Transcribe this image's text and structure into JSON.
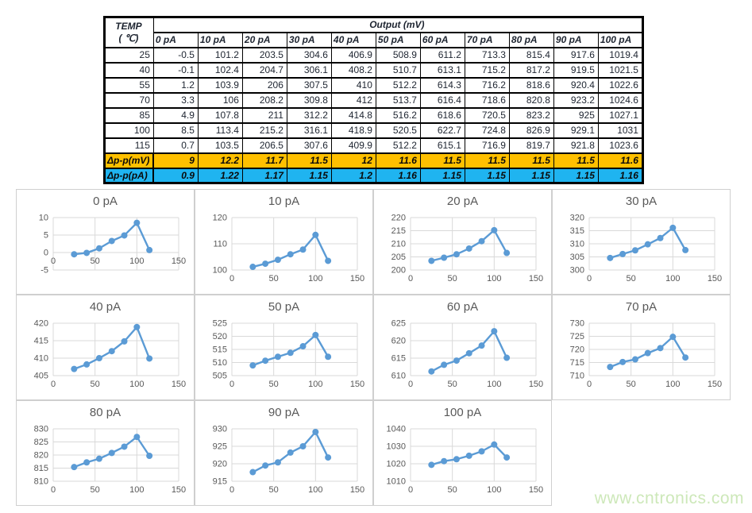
{
  "table": {
    "corner_label_line1": "TEMP",
    "corner_label_line2": "( ℃)",
    "span_header": "Output (mV)",
    "column_headers": [
      "0 pA",
      "10 pA",
      "20 pA",
      "30 pA",
      "40 pA",
      "50 pA",
      "60 pA",
      "70 pA",
      "80 pA",
      "90 pA",
      "100 pA"
    ],
    "rows": [
      {
        "temp": "25",
        "values": [
          "-0.5",
          "101.2",
          "203.5",
          "304.6",
          "406.9",
          "508.9",
          "611.2",
          "713.3",
          "815.4",
          "917.6",
          "1019.4"
        ]
      },
      {
        "temp": "40",
        "values": [
          "-0.1",
          "102.4",
          "204.7",
          "306.1",
          "408.2",
          "510.7",
          "613.1",
          "715.2",
          "817.2",
          "919.5",
          "1021.5"
        ]
      },
      {
        "temp": "55",
        "values": [
          "1.2",
          "103.9",
          "206",
          "307.5",
          "410",
          "512.2",
          "614.3",
          "716.2",
          "818.6",
          "920.4",
          "1022.6"
        ]
      },
      {
        "temp": "70",
        "values": [
          "3.3",
          "106",
          "208.2",
          "309.8",
          "412",
          "513.7",
          "616.4",
          "718.6",
          "820.8",
          "923.2",
          "1024.6"
        ]
      },
      {
        "temp": "85",
        "values": [
          "4.9",
          "107.8",
          "211",
          "312.2",
          "414.8",
          "516.2",
          "618.6",
          "720.5",
          "823.2",
          "925",
          "1027.1"
        ]
      },
      {
        "temp": "100",
        "values": [
          "8.5",
          "113.4",
          "215.2",
          "316.1",
          "418.9",
          "520.5",
          "622.7",
          "724.8",
          "826.9",
          "929.1",
          "1031"
        ]
      },
      {
        "temp": "115",
        "values": [
          "0.7",
          "103.5",
          "206.5",
          "307.6",
          "409.9",
          "512.2",
          "615.1",
          "716.9",
          "819.7",
          "921.8",
          "1023.6"
        ]
      }
    ],
    "delta_mv": {
      "label": "Δp-p(mV)",
      "values": [
        "9",
        "12.2",
        "11.7",
        "11.5",
        "12",
        "11.6",
        "11.5",
        "11.5",
        "11.5",
        "11.5",
        "11.6"
      ]
    },
    "delta_pa": {
      "label": "Δp-p(pA)",
      "values": [
        "0.9",
        "1.22",
        "1.17",
        "1.15",
        "1.2",
        "1.16",
        "1.15",
        "1.15",
        "1.15",
        "1.15",
        "1.16"
      ]
    }
  },
  "chart_data": [
    {
      "type": "line",
      "title": "0 pA",
      "xlabel": "",
      "ylabel": "",
      "x": [
        25,
        40,
        55,
        70,
        85,
        100,
        115
      ],
      "values": [
        -0.5,
        -0.1,
        1.2,
        3.3,
        4.9,
        8.5,
        0.7
      ],
      "xlim": [
        0,
        150
      ],
      "xticks": [
        0,
        50,
        100,
        150
      ],
      "ylim": [
        -5,
        10
      ],
      "yticks": [
        -5,
        0,
        5,
        10
      ]
    },
    {
      "type": "line",
      "title": "10 pA",
      "xlabel": "",
      "ylabel": "",
      "x": [
        25,
        40,
        55,
        70,
        85,
        100,
        115
      ],
      "values": [
        101.2,
        102.4,
        103.9,
        106,
        107.8,
        113.4,
        103.5
      ],
      "xlim": [
        0,
        150
      ],
      "xticks": [
        0,
        50,
        100,
        150
      ],
      "ylim": [
        100,
        120
      ],
      "yticks": [
        100,
        110,
        120
      ]
    },
    {
      "type": "line",
      "title": "20 pA",
      "xlabel": "",
      "ylabel": "",
      "x": [
        25,
        40,
        55,
        70,
        85,
        100,
        115
      ],
      "values": [
        203.5,
        204.7,
        206,
        208.2,
        211,
        215.2,
        206.5
      ],
      "xlim": [
        0,
        150
      ],
      "xticks": [
        0,
        50,
        100,
        150
      ],
      "ylim": [
        200,
        220
      ],
      "yticks": [
        200,
        205,
        210,
        215,
        220
      ]
    },
    {
      "type": "line",
      "title": "30 pA",
      "xlabel": "",
      "ylabel": "",
      "x": [
        25,
        40,
        55,
        70,
        85,
        100,
        115
      ],
      "values": [
        304.6,
        306.1,
        307.5,
        309.8,
        312.2,
        316.1,
        307.6
      ],
      "xlim": [
        0,
        150
      ],
      "xticks": [
        0,
        50,
        100,
        150
      ],
      "ylim": [
        300,
        320
      ],
      "yticks": [
        300,
        305,
        310,
        315,
        320
      ]
    },
    {
      "type": "line",
      "title": "40 pA",
      "xlabel": "",
      "ylabel": "",
      "x": [
        25,
        40,
        55,
        70,
        85,
        100,
        115
      ],
      "values": [
        406.9,
        408.2,
        410,
        412,
        414.8,
        418.9,
        409.9
      ],
      "xlim": [
        0,
        150
      ],
      "xticks": [
        0,
        50,
        100,
        150
      ],
      "ylim": [
        405,
        420
      ],
      "yticks": [
        405,
        410,
        415,
        420
      ]
    },
    {
      "type": "line",
      "title": "50 pA",
      "xlabel": "",
      "ylabel": "",
      "x": [
        25,
        40,
        55,
        70,
        85,
        100,
        115
      ],
      "values": [
        508.9,
        510.7,
        512.2,
        513.7,
        516.2,
        520.5,
        512.2
      ],
      "xlim": [
        0,
        150
      ],
      "xticks": [
        0,
        50,
        100,
        150
      ],
      "ylim": [
        505,
        525
      ],
      "yticks": [
        505,
        510,
        515,
        520,
        525
      ]
    },
    {
      "type": "line",
      "title": "60 pA",
      "xlabel": "",
      "ylabel": "",
      "x": [
        25,
        40,
        55,
        70,
        85,
        100,
        115
      ],
      "values": [
        611.2,
        613.1,
        614.3,
        616.4,
        618.6,
        622.7,
        615.1
      ],
      "xlim": [
        0,
        150
      ],
      "xticks": [
        0,
        50,
        100,
        150
      ],
      "ylim": [
        610,
        625
      ],
      "yticks": [
        610,
        615,
        620,
        625
      ]
    },
    {
      "type": "line",
      "title": "70 pA",
      "xlabel": "",
      "ylabel": "",
      "x": [
        25,
        40,
        55,
        70,
        85,
        100,
        115
      ],
      "values": [
        713.3,
        715.2,
        716.2,
        718.6,
        720.5,
        724.8,
        716.9
      ],
      "xlim": [
        0,
        150
      ],
      "xticks": [
        0,
        50,
        100,
        150
      ],
      "ylim": [
        710,
        730
      ],
      "yticks": [
        710,
        715,
        720,
        725,
        730
      ]
    },
    {
      "type": "line",
      "title": "80 pA",
      "xlabel": "",
      "ylabel": "",
      "x": [
        25,
        40,
        55,
        70,
        85,
        100,
        115
      ],
      "values": [
        815.4,
        817.2,
        818.6,
        820.8,
        823.2,
        826.9,
        819.7
      ],
      "xlim": [
        0,
        150
      ],
      "xticks": [
        0,
        50,
        100,
        150
      ],
      "ylim": [
        810,
        830
      ],
      "yticks": [
        810,
        815,
        820,
        825,
        830
      ]
    },
    {
      "type": "line",
      "title": "90 pA",
      "xlabel": "",
      "ylabel": "",
      "x": [
        25,
        40,
        55,
        70,
        85,
        100,
        115
      ],
      "values": [
        917.6,
        919.5,
        920.4,
        923.2,
        925,
        929.1,
        921.8
      ],
      "xlim": [
        0,
        150
      ],
      "xticks": [
        0,
        50,
        100,
        150
      ],
      "ylim": [
        915,
        930
      ],
      "yticks": [
        915,
        920,
        925,
        930
      ]
    },
    {
      "type": "line",
      "title": "100 pA",
      "xlabel": "",
      "ylabel": "",
      "x": [
        25,
        40,
        55,
        70,
        85,
        100,
        115
      ],
      "values": [
        1019.4,
        1021.5,
        1022.6,
        1024.6,
        1027.1,
        1031,
        1023.6
      ],
      "xlim": [
        0,
        150
      ],
      "xticks": [
        0,
        50,
        100,
        150
      ],
      "ylim": [
        1010,
        1040
      ],
      "yticks": [
        1010,
        1020,
        1030,
        1040
      ]
    }
  ],
  "watermark": {
    "text": "www.cntronics.com"
  },
  "colors": {
    "series_line": "#5B9BD5",
    "gridline": "#D9D9D9",
    "axis_text": "#595959",
    "delta_mv_bg": "#FFC000",
    "delta_pa_bg": "#1FB4F0",
    "watermark": "#cde8b9"
  }
}
